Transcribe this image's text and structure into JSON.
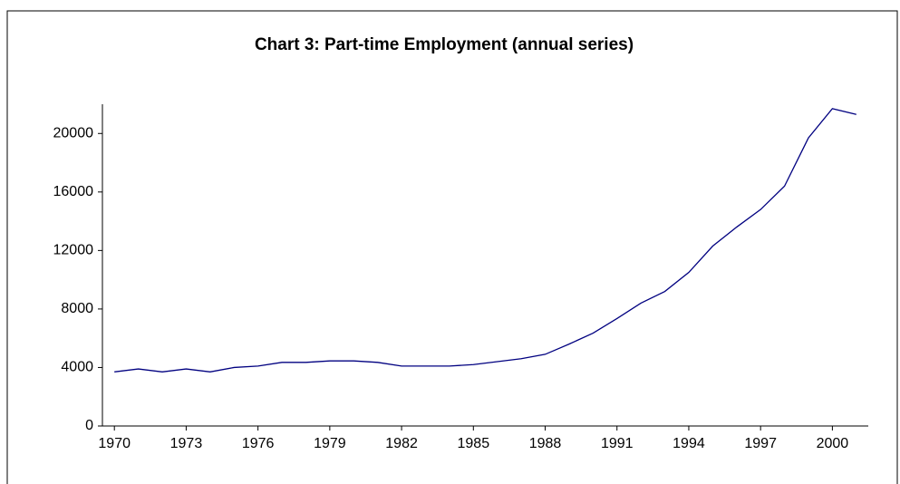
{
  "chart_data": {
    "type": "line",
    "title": "Chart 3: Part-time Employment (annual series)",
    "x": [
      1970,
      1971,
      1972,
      1973,
      1974,
      1975,
      1976,
      1977,
      1978,
      1979,
      1980,
      1981,
      1982,
      1983,
      1984,
      1985,
      1986,
      1987,
      1988,
      1989,
      1990,
      1991,
      1992,
      1993,
      1994,
      1995,
      1996,
      1997,
      1998,
      1999,
      2000,
      2001
    ],
    "series": [
      {
        "name": "Part-time Employment",
        "color": "#000080",
        "values": [
          3700,
          3900,
          3700,
          3900,
          3700,
          4000,
          4100,
          4350,
          4350,
          4450,
          4450,
          4350,
          4100,
          4100,
          4100,
          4200,
          4400,
          4600,
          4900,
          5600,
          6350,
          7350,
          8400,
          9200,
          10500,
          12300,
          13600,
          14800,
          16400,
          19700,
          21700,
          21300
        ]
      }
    ],
    "xlim": [
      1969.5,
      2001.5
    ],
    "xticks": [
      1970,
      1973,
      1976,
      1979,
      1982,
      1985,
      1988,
      1991,
      1994,
      1997,
      2000
    ],
    "ylim": [
      0,
      22000
    ],
    "yticks": [
      0,
      4000,
      8000,
      12000,
      16000,
      20000
    ]
  }
}
